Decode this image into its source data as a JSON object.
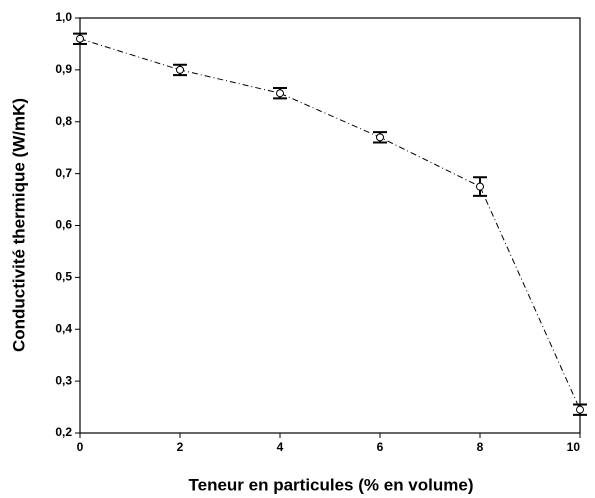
{
  "chart_data": {
    "type": "line",
    "xlabel": "Teneur en particules (% en volume)",
    "ylabel": "Conductivité thermique (W/mK)",
    "x": [
      0,
      2,
      4,
      6,
      8,
      10
    ],
    "series": [
      {
        "color": "#000000",
        "values": [
          0.96,
          0.9,
          0.855,
          0.77,
          0.675,
          0.245
        ],
        "errors": [
          0.01,
          0.01,
          0.01,
          0.01,
          0.018,
          0.01
        ]
      }
    ],
    "xlim": [
      0,
      10
    ],
    "xticks": [
      0,
      2,
      4,
      6,
      8,
      10
    ],
    "ylim": [
      0.2,
      1.0
    ],
    "yticks": [
      {
        "value": 0.2,
        "label": "0,2"
      },
      {
        "value": 0.3,
        "label": "0,3"
      },
      {
        "value": 0.4,
        "label": "0,4"
      },
      {
        "value": 0.5,
        "label": "0,5"
      },
      {
        "value": 0.6,
        "label": "0,6"
      },
      {
        "value": 0.7,
        "label": "0,7"
      },
      {
        "value": 0.8,
        "label": "0,8"
      },
      {
        "value": 0.9,
        "label": "0,9"
      },
      {
        "value": 1.0,
        "label": "1,0"
      }
    ],
    "grid": false
  }
}
